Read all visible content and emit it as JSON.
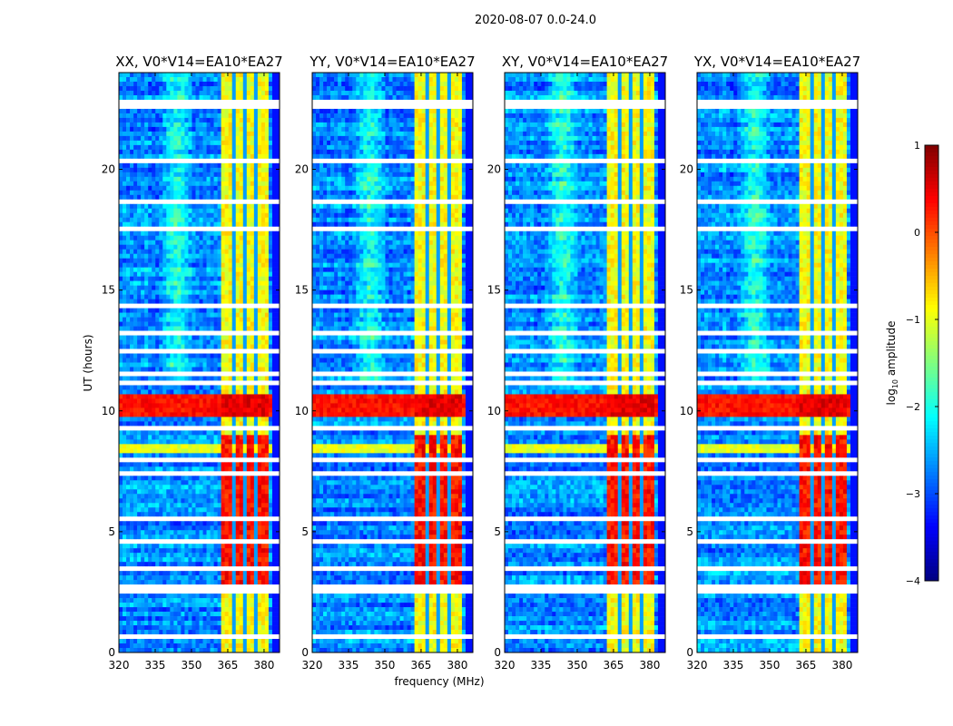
{
  "chart_data": {
    "type": "heatmap",
    "suptitle": "2020-08-07 0.0-24.0",
    "xlabel": "frequency (MHz)",
    "ylabel": "UT (hours)",
    "xlim": [
      320,
      386.4
    ],
    "ylim": [
      0,
      24
    ],
    "xticks": [
      "320",
      "335",
      "350",
      "365",
      "380"
    ],
    "xtick_values": [
      320,
      335,
      350,
      365,
      380
    ],
    "yticks": [
      "0",
      "5",
      "10",
      "15",
      "20"
    ],
    "ytick_values": [
      0,
      5,
      10,
      15,
      20
    ],
    "panels": [
      {
        "title": "XX, V0*V14=EA10*EA27",
        "seed": 1
      },
      {
        "title": "YY, V0*V14=EA10*EA27",
        "seed": 2
      },
      {
        "title": "XY, V0*V14=EA10*EA27",
        "seed": 3
      },
      {
        "title": "YX, V0*V14=EA10*EA27",
        "seed": 4
      }
    ],
    "model": {
      "background_log10_amplitude": -2.7,
      "rfi_band_mhz": [
        362,
        382
      ],
      "rfi_band_gaps_mhz": [
        367,
        372,
        377
      ],
      "rfi_band_level_quiet": -0.9,
      "rfi_band_level_active": 0.3,
      "active_hours": [
        2.7,
        9.0
      ],
      "broadband_bursts": [
        {
          "hours": [
            9.8,
            10.6
          ],
          "level": 0.5
        },
        {
          "hours": [
            8.2,
            8.6
          ],
          "level": -0.8
        }
      ],
      "flagged_hours": [
        0.6,
        1.5,
        2.6,
        2.8,
        3.4,
        4.6,
        5.5,
        7.4,
        8.0,
        9.2,
        11.2,
        11.5,
        12.4,
        13.2,
        14.3,
        16.5,
        17.6,
        18.6,
        19.5,
        20.4,
        22.6,
        22.8
      ]
    },
    "colorbar": {
      "label": "log10 amplitude",
      "label_main": "log",
      "label_sub": "10",
      "label_rest": " amplitude",
      "range": [
        -4,
        1
      ],
      "ticks": [
        "1",
        "0",
        "−1",
        "−2",
        "−3",
        "−4"
      ],
      "tick_values": [
        1,
        0,
        -1,
        -2,
        -3,
        -4
      ],
      "colormap": "jet"
    }
  }
}
